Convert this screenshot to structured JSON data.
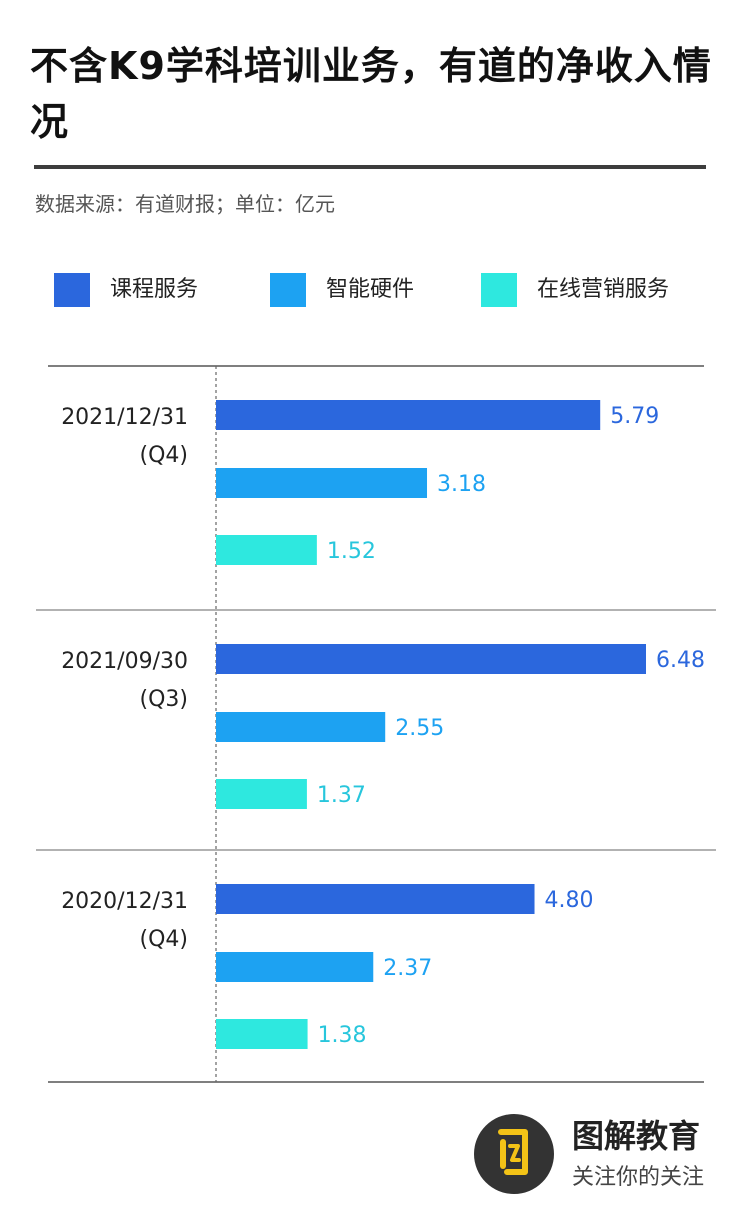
{
  "header": {
    "title": "不含K9学科培训业务，有道的净收入情况",
    "source": "数据来源：有道财报；单位：亿元"
  },
  "legend": [
    {
      "label": "课程服务",
      "color": "#2b67dd"
    },
    {
      "label": "智能硬件",
      "color": "#1da2f2"
    },
    {
      "label": "在线营销服务",
      "color": "#2ee8df"
    }
  ],
  "chart_data": {
    "type": "bar",
    "orientation": "horizontal",
    "title": "不含K9学科培训业务，有道的净收入情况",
    "unit": "亿元",
    "categories": [
      {
        "date": "2021/12/31",
        "quarter": "(Q4)"
      },
      {
        "date": "2021/09/30",
        "quarter": "(Q3)"
      },
      {
        "date": "2020/12/31",
        "quarter": "(Q4)"
      }
    ],
    "series": [
      {
        "name": "课程服务",
        "color": "#2b67dd",
        "label_color": "#2b67dd",
        "values": [
          5.79,
          6.48,
          4.8
        ],
        "labels": [
          "5.79",
          "6.48",
          "4.80"
        ]
      },
      {
        "name": "智能硬件",
        "color": "#1da2f2",
        "label_color": "#1da2f2",
        "values": [
          3.18,
          2.55,
          2.37
        ],
        "labels": [
          "3.18",
          "2.55",
          "2.37"
        ]
      },
      {
        "name": "在线营销服务",
        "color": "#2ee8df",
        "label_color": "#27c6dc",
        "values": [
          1.52,
          1.37,
          1.38
        ],
        "labels": [
          "1.52",
          "1.37",
          "1.38"
        ]
      }
    ],
    "xlim": [
      0,
      6.48
    ]
  },
  "logo": {
    "name": "图解教育",
    "slogan": "关注你的关注",
    "circle_color": "#333333",
    "mark_color": "#f3c317"
  }
}
